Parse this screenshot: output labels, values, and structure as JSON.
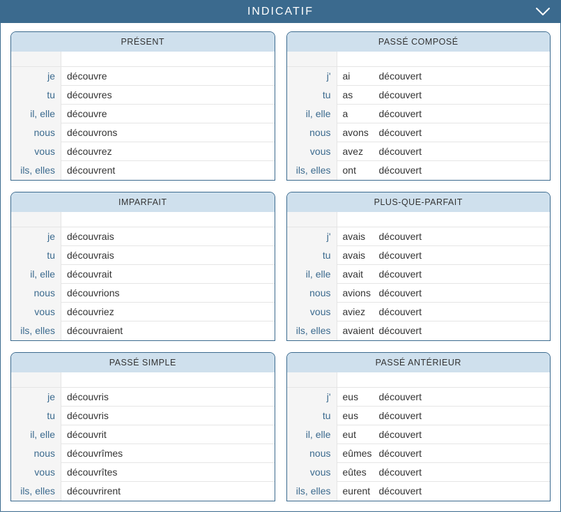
{
  "title": "INDICATIF",
  "colors": {
    "header_bg": "#3b6a8e",
    "header_text": "#ffffff",
    "tense_header_bg": "#cfe0ed",
    "pronoun_bg": "#f5f5f5",
    "pronoun_color": "#3b6a8e",
    "text_color": "#333333",
    "border": "#e5e5e5"
  },
  "tenses": [
    {
      "name": "PRÉSENT",
      "compound": false,
      "rows": [
        {
          "pronoun": "je",
          "verb": "découvre"
        },
        {
          "pronoun": "tu",
          "verb": "découvres"
        },
        {
          "pronoun": "il, elle",
          "verb": "découvre"
        },
        {
          "pronoun": "nous",
          "verb": "découvrons"
        },
        {
          "pronoun": "vous",
          "verb": "découvrez"
        },
        {
          "pronoun": "ils, elles",
          "verb": "découvrent"
        }
      ]
    },
    {
      "name": "PASSÉ COMPOSÉ",
      "compound": true,
      "rows": [
        {
          "pronoun": "j'",
          "aux": "ai",
          "part": "découvert"
        },
        {
          "pronoun": "tu",
          "aux": "as",
          "part": "découvert"
        },
        {
          "pronoun": "il, elle",
          "aux": "a",
          "part": "découvert"
        },
        {
          "pronoun": "nous",
          "aux": "avons",
          "part": "découvert"
        },
        {
          "pronoun": "vous",
          "aux": "avez",
          "part": "découvert"
        },
        {
          "pronoun": "ils, elles",
          "aux": "ont",
          "part": "découvert"
        }
      ]
    },
    {
      "name": "IMPARFAIT",
      "compound": false,
      "rows": [
        {
          "pronoun": "je",
          "verb": "découvrais"
        },
        {
          "pronoun": "tu",
          "verb": "découvrais"
        },
        {
          "pronoun": "il, elle",
          "verb": "découvrait"
        },
        {
          "pronoun": "nous",
          "verb": "découvrions"
        },
        {
          "pronoun": "vous",
          "verb": "découvriez"
        },
        {
          "pronoun": "ils, elles",
          "verb": "découvraient"
        }
      ]
    },
    {
      "name": "PLUS-QUE-PARFAIT",
      "compound": true,
      "rows": [
        {
          "pronoun": "j'",
          "aux": "avais",
          "part": "découvert"
        },
        {
          "pronoun": "tu",
          "aux": "avais",
          "part": "découvert"
        },
        {
          "pronoun": "il, elle",
          "aux": "avait",
          "part": "découvert"
        },
        {
          "pronoun": "nous",
          "aux": "avions",
          "part": "découvert"
        },
        {
          "pronoun": "vous",
          "aux": "aviez",
          "part": "découvert"
        },
        {
          "pronoun": "ils, elles",
          "aux": "avaient",
          "part": "découvert"
        }
      ]
    },
    {
      "name": "PASSÉ SIMPLE",
      "compound": false,
      "rows": [
        {
          "pronoun": "je",
          "verb": "découvris"
        },
        {
          "pronoun": "tu",
          "verb": "découvris"
        },
        {
          "pronoun": "il, elle",
          "verb": "découvrit"
        },
        {
          "pronoun": "nous",
          "verb": "découvrîmes"
        },
        {
          "pronoun": "vous",
          "verb": "découvrîtes"
        },
        {
          "pronoun": "ils, elles",
          "verb": "découvrirent"
        }
      ]
    },
    {
      "name": "PASSÉ ANTÉRIEUR",
      "compound": true,
      "rows": [
        {
          "pronoun": "j'",
          "aux": "eus",
          "part": "découvert"
        },
        {
          "pronoun": "tu",
          "aux": "eus",
          "part": "découvert"
        },
        {
          "pronoun": "il, elle",
          "aux": "eut",
          "part": "découvert"
        },
        {
          "pronoun": "nous",
          "aux": "eûmes",
          "part": "découvert"
        },
        {
          "pronoun": "vous",
          "aux": "eûtes",
          "part": "découvert"
        },
        {
          "pronoun": "ils, elles",
          "aux": "eurent",
          "part": "découvert"
        }
      ]
    }
  ]
}
